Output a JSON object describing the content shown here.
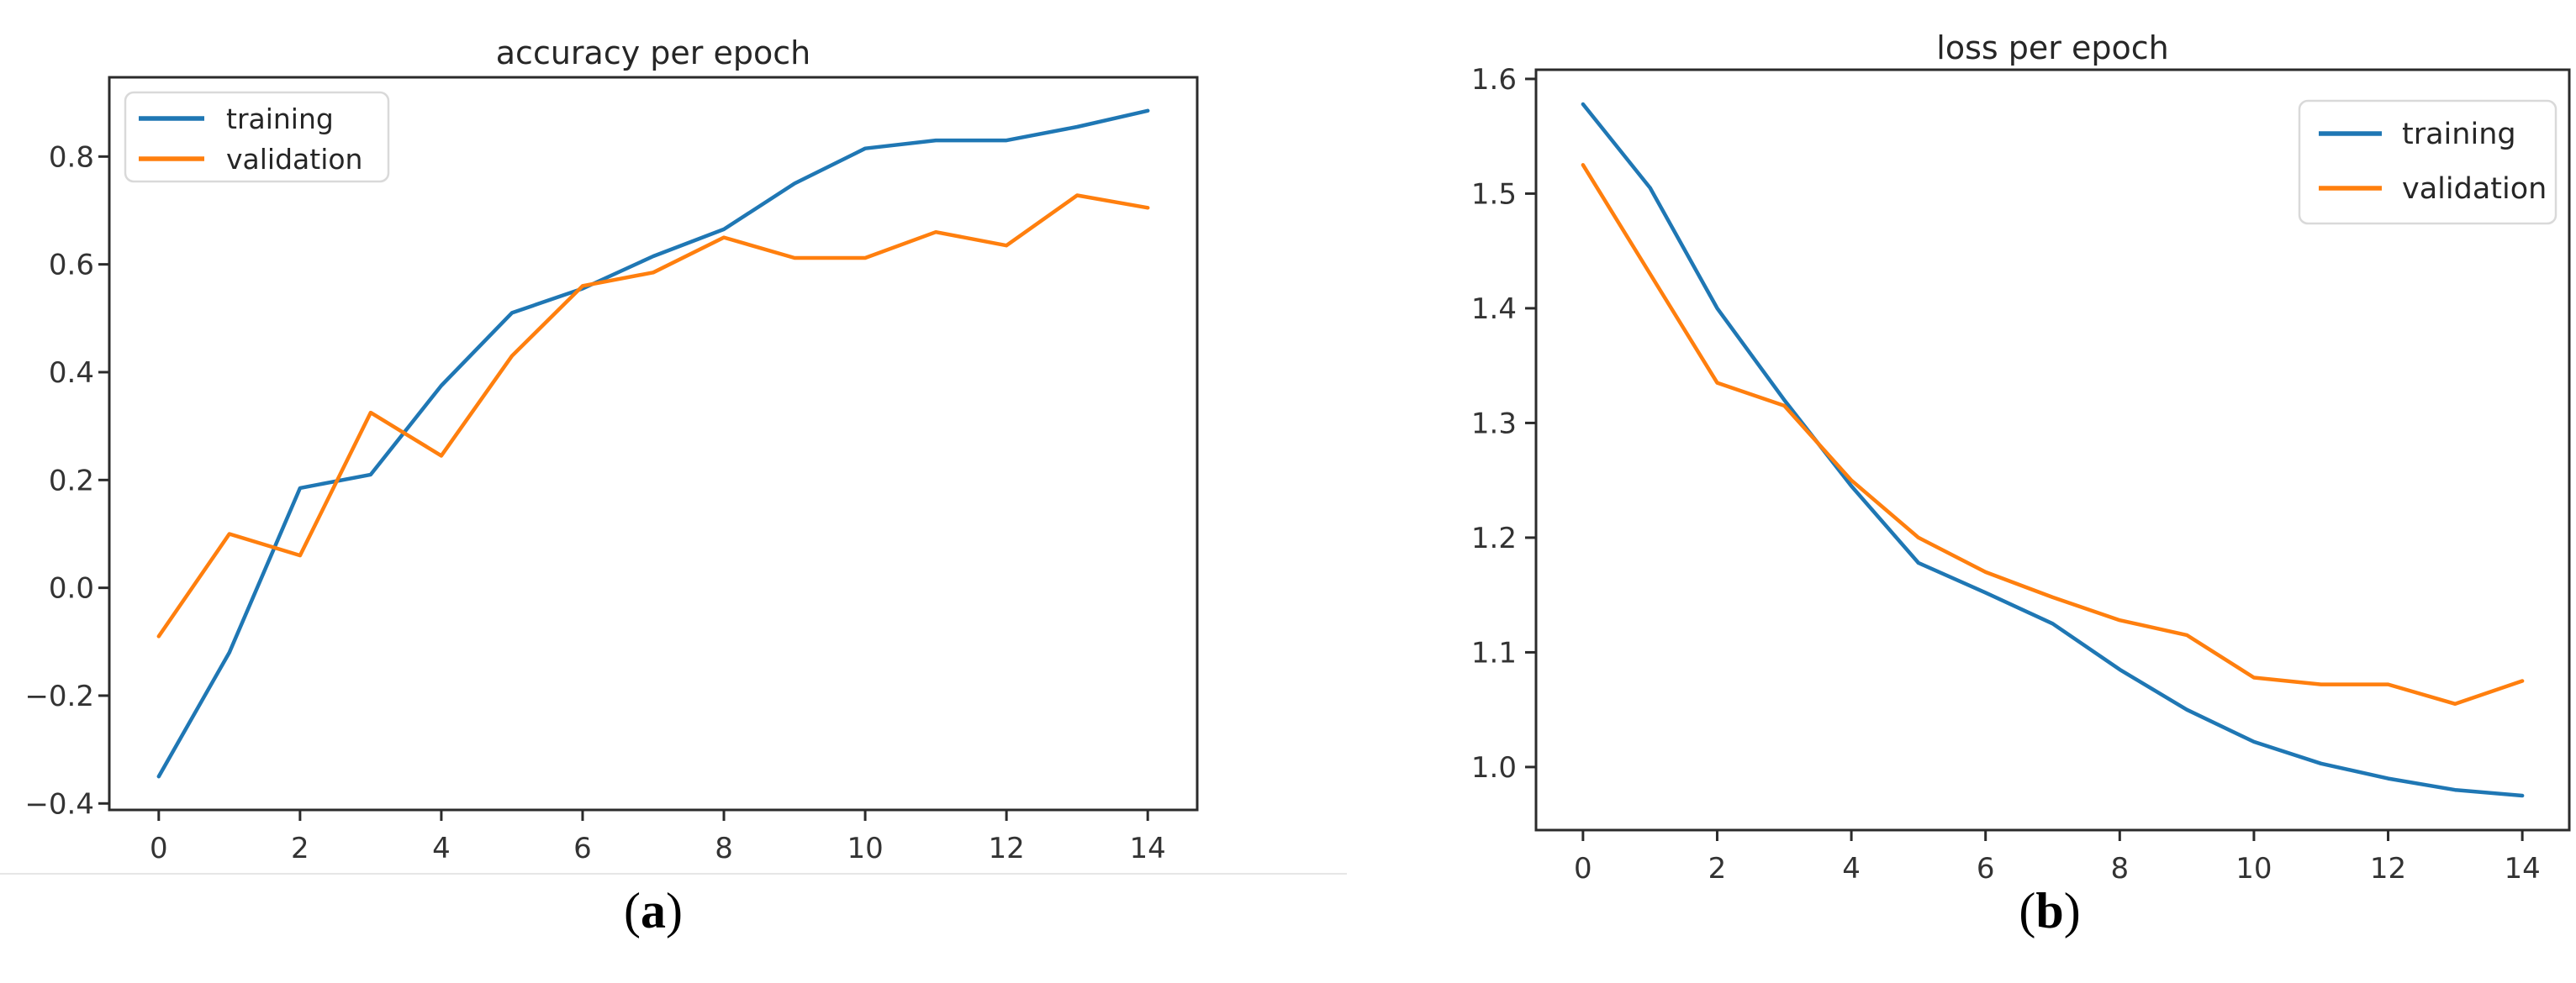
{
  "figure": {
    "background": "#ffffff",
    "captions": [
      {
        "open": "(",
        "letter": "a",
        "close": ")"
      },
      {
        "open": "(",
        "letter": "b",
        "close": ")"
      }
    ]
  },
  "colors": {
    "training": "#1f77b4",
    "validation": "#ff7f0e",
    "axis": "#2b2b2b",
    "tick_text": "#333333",
    "title_text": "#262626",
    "legend_border": "#d9d9d9",
    "legend_fill": "#ffffff",
    "hairline": "#e6e6e6",
    "background": "#ffffff"
  },
  "chart_data": [
    {
      "id": "accuracy",
      "type": "line",
      "title": "accuracy per epoch",
      "xlabel": "",
      "ylabel": "",
      "grid": false,
      "legend_position": "upper left",
      "x": [
        0,
        1,
        2,
        3,
        4,
        5,
        6,
        7,
        8,
        9,
        10,
        11,
        12,
        13,
        14
      ],
      "series": [
        {
          "name": "training",
          "color": "#1f77b4",
          "values": [
            -0.35,
            -0.12,
            0.185,
            0.21,
            0.375,
            0.51,
            0.555,
            0.615,
            0.665,
            0.75,
            0.815,
            0.83,
            0.83,
            0.855,
            0.885
          ]
        },
        {
          "name": "validation",
          "color": "#ff7f0e",
          "values": [
            -0.09,
            0.1,
            0.06,
            0.325,
            0.245,
            0.43,
            0.56,
            0.585,
            0.65,
            0.612,
            0.612,
            0.66,
            0.635,
            0.728,
            0.705
          ]
        }
      ],
      "xlim": [
        -0.7,
        14.7
      ],
      "ylim": [
        -0.412,
        0.947
      ],
      "xticks": {
        "values": [
          0,
          2,
          4,
          6,
          8,
          10,
          12,
          14
        ],
        "labels": [
          "0",
          "2",
          "4",
          "6",
          "8",
          "10",
          "12",
          "14"
        ]
      },
      "yticks": {
        "values": [
          -0.4,
          -0.2,
          0.0,
          0.2,
          0.4,
          0.6,
          0.8
        ],
        "labels": [
          "−0.4",
          "−0.2",
          "0.0",
          "0.2",
          "0.4",
          "0.6",
          "0.8"
        ]
      }
    },
    {
      "id": "loss",
      "type": "line",
      "title": "loss per epoch",
      "xlabel": "",
      "ylabel": "",
      "grid": false,
      "legend_position": "upper right",
      "x": [
        0,
        1,
        2,
        3,
        4,
        5,
        6,
        7,
        8,
        9,
        10,
        11,
        12,
        13,
        14
      ],
      "series": [
        {
          "name": "training",
          "color": "#1f77b4",
          "values": [
            1.578,
            1.505,
            1.4,
            1.32,
            1.245,
            1.178,
            1.152,
            1.125,
            1.085,
            1.05,
            1.022,
            1.003,
            0.99,
            0.98,
            0.975
          ]
        },
        {
          "name": "validation",
          "color": "#ff7f0e",
          "values": [
            1.525,
            1.43,
            1.335,
            1.315,
            1.25,
            1.2,
            1.17,
            1.148,
            1.128,
            1.115,
            1.078,
            1.072,
            1.072,
            1.055,
            1.075
          ]
        }
      ],
      "xlim": [
        -0.7,
        14.7
      ],
      "ylim": [
        0.945,
        1.608
      ],
      "xticks": {
        "values": [
          0,
          2,
          4,
          6,
          8,
          10,
          12,
          14
        ],
        "labels": [
          "0",
          "2",
          "4",
          "6",
          "8",
          "10",
          "12",
          "14"
        ]
      },
      "yticks": {
        "values": [
          1.0,
          1.1,
          1.2,
          1.3,
          1.4,
          1.5,
          1.6
        ],
        "labels": [
          "1.0",
          "1.1",
          "1.2",
          "1.3",
          "1.4",
          "1.5",
          "1.6"
        ]
      }
    }
  ]
}
